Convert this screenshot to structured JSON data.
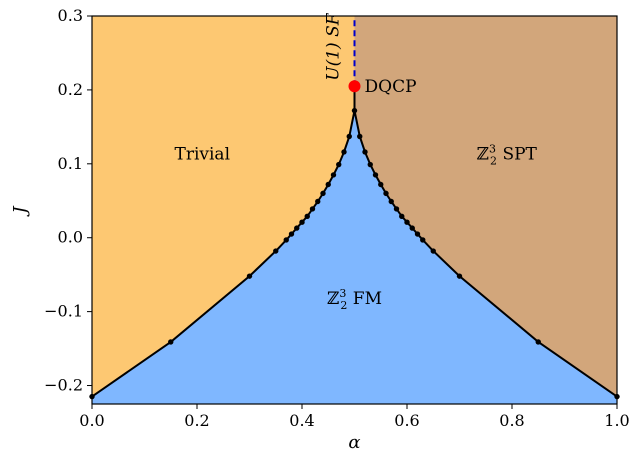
{
  "chart_data": {
    "type": "phase_diagram",
    "xlabel": "α",
    "ylabel": "J",
    "xlim": [
      0.0,
      1.0
    ],
    "ylim": [
      -0.225,
      0.3
    ],
    "x_ticks": [
      0.0,
      0.2,
      0.4,
      0.6,
      0.8,
      1.0
    ],
    "x_tick_labels": [
      "0.0",
      "0.2",
      "0.4",
      "0.6",
      "0.8",
      "1.0"
    ],
    "y_ticks": [
      -0.2,
      -0.1,
      0.0,
      0.1,
      0.2,
      0.3
    ],
    "y_tick_labels": [
      "−0.2",
      "−0.1",
      "0.0",
      "0.1",
      "0.2",
      "0.3"
    ],
    "grid": false,
    "boundary_left": {
      "x": [
        0.0,
        0.15,
        0.3,
        0.35,
        0.37,
        0.38,
        0.39,
        0.4,
        0.41,
        0.42,
        0.43,
        0.44,
        0.45,
        0.46,
        0.47,
        0.48,
        0.49,
        0.5
      ],
      "y": [
        -0.215,
        -0.141,
        -0.052,
        -0.018,
        -0.003,
        0.005,
        0.013,
        0.021,
        0.029,
        0.039,
        0.049,
        0.06,
        0.072,
        0.085,
        0.099,
        0.116,
        0.137,
        0.172
      ]
    },
    "boundary_right": {
      "x": [
        0.5,
        0.51,
        0.52,
        0.53,
        0.54,
        0.55,
        0.56,
        0.57,
        0.58,
        0.59,
        0.6,
        0.61,
        0.62,
        0.63,
        0.65,
        0.7,
        0.85,
        1.0
      ],
      "y": [
        0.172,
        0.137,
        0.116,
        0.099,
        0.085,
        0.072,
        0.06,
        0.049,
        0.039,
        0.029,
        0.021,
        0.013,
        0.005,
        -0.003,
        -0.018,
        -0.052,
        -0.141,
        -0.215
      ]
    },
    "sf_line": {
      "x": 0.5,
      "y_from": 0.205,
      "y_to": 0.3
    },
    "dqcp_point": {
      "x": 0.5,
      "y": 0.205
    },
    "regions": [
      {
        "id": "trivial",
        "label_main": "Trivial",
        "label_base": "",
        "label_sup": "",
        "label_sub": "",
        "label_suffix": "",
        "anchor": [
          0.21,
          0.106
        ],
        "color": "#fdc872"
      },
      {
        "id": "spt",
        "label_main": "",
        "label_base": "ℤ",
        "label_sup": "3",
        "label_sub": "2",
        "label_suffix": " SPT",
        "anchor": [
          0.79,
          0.106
        ],
        "color": "#d2a67b"
      },
      {
        "id": "fm",
        "label_main": "",
        "label_base": "ℤ",
        "label_sup": "3",
        "label_sub": "2",
        "label_suffix": " FM",
        "anchor": [
          0.5,
          -0.09
        ],
        "color": "#7fb7ff"
      }
    ],
    "annotations": {
      "dqcp_label": "DQCP",
      "dqcp_color": "#ff0000",
      "sf_label": "U(1) SF",
      "sf_color": "#0000cc"
    }
  }
}
